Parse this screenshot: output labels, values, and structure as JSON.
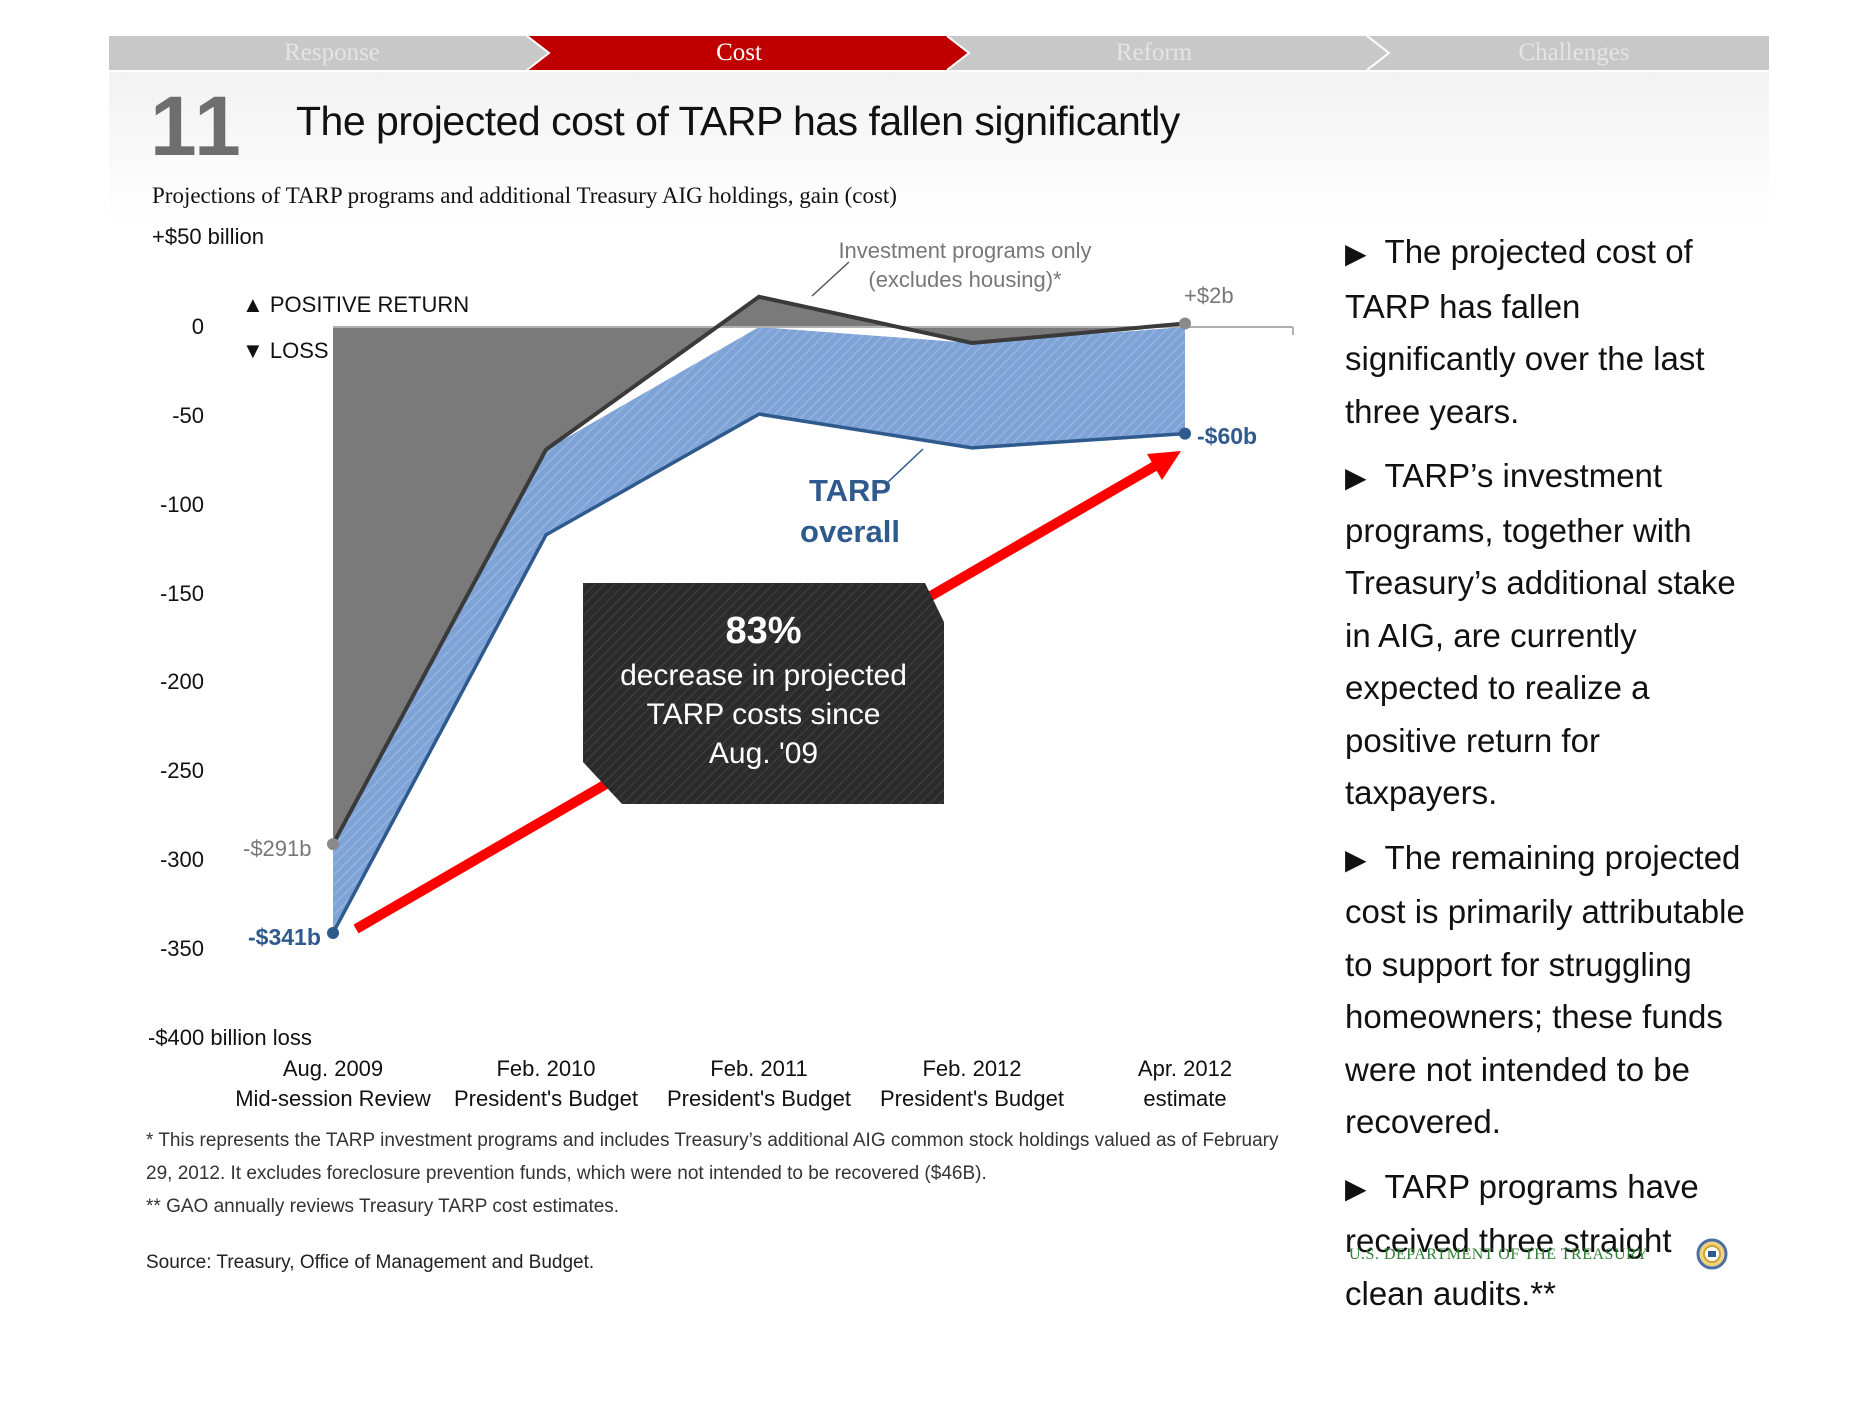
{
  "nav": {
    "tabs": [
      {
        "label": "Response",
        "active": false
      },
      {
        "label": "Cost",
        "active": true
      },
      {
        "label": "Reform",
        "active": false
      },
      {
        "label": "Challenges",
        "active": false
      }
    ],
    "active_color": "#c00000",
    "inactive_color": "#c8c8c8"
  },
  "slide": {
    "number": "11",
    "title": "The projected cost of TARP has fallen significantly"
  },
  "chart_data": {
    "type": "area",
    "title": "Projections of TARP programs and additional Treasury AIG holdings, gain (cost)",
    "ylim": [
      -400,
      50
    ],
    "y_top_label": "+$50 billion",
    "y_bottom_label": "-$400 billion loss",
    "y_ticks": [
      {
        "value": 0,
        "label": "0"
      },
      {
        "value": -50,
        "label": "-50"
      },
      {
        "value": -100,
        "label": "-100"
      },
      {
        "value": -150,
        "label": "-150"
      },
      {
        "value": -200,
        "label": "-200"
      },
      {
        "value": -250,
        "label": "-250"
      },
      {
        "value": -300,
        "label": "-300"
      },
      {
        "value": -350,
        "label": "-350"
      }
    ],
    "categories": [
      {
        "line1": "Aug. 2009",
        "line2": "Mid-session Review"
      },
      {
        "line1": "Feb. 2010",
        "line2": "President's Budget"
      },
      {
        "line1": "Feb. 2011",
        "line2": "President's Budget"
      },
      {
        "line1": "Feb. 2012",
        "line2": "President's Budget"
      },
      {
        "line1": "Apr. 2012",
        "line2": "estimate"
      }
    ],
    "series": [
      {
        "name": "Investment programs only (excludes housing)*",
        "values": [
          -291,
          -69,
          17,
          -9,
          2
        ],
        "color": "#3a3a3a",
        "fill": "#7a7a7a"
      },
      {
        "name": "TARP overall",
        "values": [
          -341,
          -117,
          -49,
          -68,
          -60
        ],
        "color": "#2f5a8e",
        "fill": "#7fa3d6"
      }
    ],
    "legend": {
      "positive": "▲ POSITIVE RETURN",
      "loss": "▼ LOSS"
    },
    "annotations": {
      "investment_line1": "Investment programs only",
      "investment_line2": "(excludes housing)*",
      "tarp_line1": "TARP",
      "tarp_line2": "overall",
      "start_investment": "-$291b",
      "start_tarp": "-$341b",
      "end_investment": "+$2b",
      "end_tarp": "-$60b",
      "box_pct": "83%",
      "box_line1": "decrease in projected",
      "box_line2": "TARP costs since",
      "box_line3": "Aug. '09"
    }
  },
  "footnotes": [
    "* This represents the TARP investment programs and includes Treasury’s additional AIG common stock holdings valued as of February",
    "29, 2012. It excludes foreclosure prevention funds, which were not intended to be recovered ($46B).",
    "** GAO annually reviews Treasury TARP cost estimates."
  ],
  "source": "Source: Treasury, Office of Management and Budget.",
  "sidebar": {
    "bullet_glyph": "▶",
    "bullets": [
      "The projected cost of TARP has fallen significantly over the last three years.",
      "TARP’s investment programs, together with Treasury’s additional stake in AIG,  are currently expected to realize a positive return for taxpayers.",
      "The remaining projected cost is primarily attributable to support for struggling homeowners; these funds were not intended to be recovered.",
      "TARP programs have received three straight clean audits.**"
    ]
  },
  "footer": {
    "org": "U.S. DEPARTMENT OF THE TREASURY",
    "seal_icon": "treasury-seal-icon"
  }
}
